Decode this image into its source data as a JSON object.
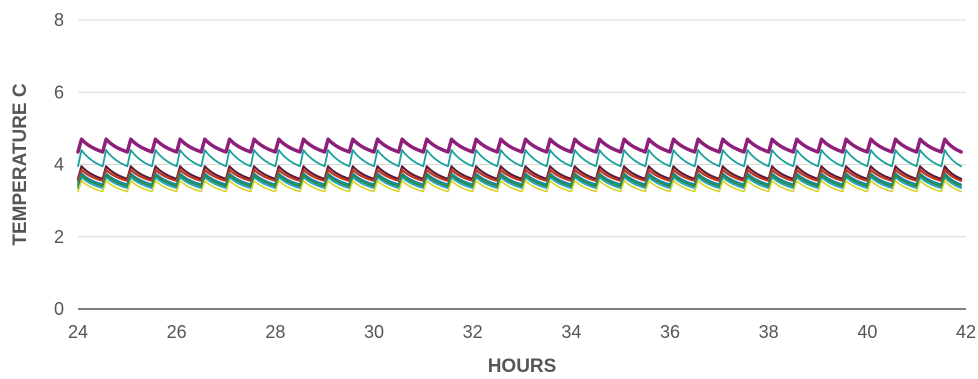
{
  "chart_data": {
    "type": "line",
    "title": "",
    "xlabel": "HOURS",
    "ylabel": "TEMPERATURE C",
    "xlim": [
      24,
      42
    ],
    "ylim": [
      0,
      8
    ],
    "x_ticks": [
      "24",
      "26",
      "28",
      "30",
      "32",
      "34",
      "36",
      "38",
      "40",
      "42"
    ],
    "y_ticks": [
      "0",
      "2",
      "4",
      "6",
      "8"
    ],
    "grid": true,
    "legend": "none",
    "cycle_period_hours": 0.5,
    "x_start": 24,
    "x_end": 41.9,
    "series": [
      {
        "color": "#8e1f7a",
        "min": 4.35,
        "max": 4.7,
        "stroke_width": 3.5
      },
      {
        "color": "#17a19a",
        "min": 3.95,
        "max": 4.4,
        "stroke_width": 1.8
      },
      {
        "color": "#5c1a3a",
        "min": 3.6,
        "max": 3.95,
        "stroke_width": 2.2
      },
      {
        "color": "#c2351b",
        "min": 3.55,
        "max": 3.85,
        "stroke_width": 2.2
      },
      {
        "color": "#17879e",
        "min": 3.45,
        "max": 3.75,
        "stroke_width": 2.0
      },
      {
        "color": "#2aa6c8",
        "min": 3.35,
        "max": 3.65,
        "stroke_width": 2.0
      },
      {
        "color": "#2c8b3c",
        "min": 3.4,
        "max": 3.7,
        "stroke_width": 1.6
      },
      {
        "color": "#d8d227",
        "min": 3.25,
        "max": 3.55,
        "stroke_width": 1.6
      }
    ]
  }
}
